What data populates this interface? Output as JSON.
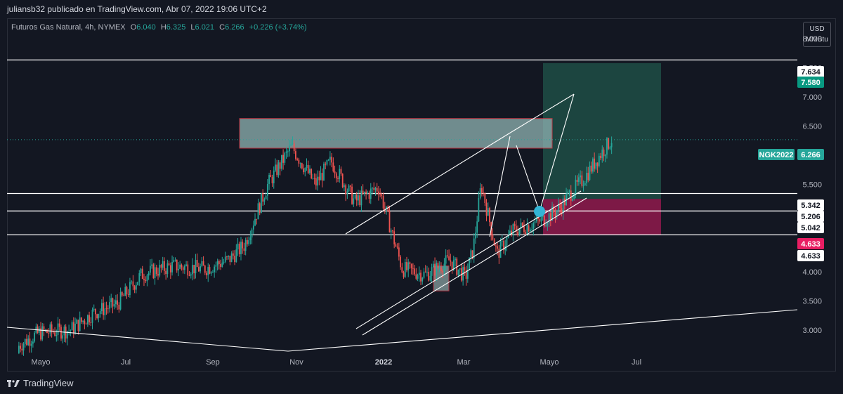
{
  "publish_line": "juliansb32 publicado en TradingView.com, Abr 07, 2022 19:06 UTC+2",
  "legend": {
    "symbol": "Futuros Gas Natural, 4h, NYMEX",
    "o_key": "O",
    "o_val": "6.040",
    "h_key": "H",
    "h_val": "6.325",
    "l_key": "L",
    "l_val": "6.021",
    "c_key": "C",
    "c_val": "6.266",
    "change": "+0.226 (+3.74%)"
  },
  "unit": {
    "currency": "USD",
    "measure": "MMBtu"
  },
  "footer_brand": "TradingView",
  "colors": {
    "background": "#131722",
    "bull": "#26a69a",
    "bear": "#ef5350",
    "target_zone": "#1e4e45",
    "stop_zone": "#8a1a4a",
    "supply_zone": "#8fb3b3"
  },
  "chart_data": {
    "type": "candlestick",
    "ylim": [
      2.6,
      8.35
    ],
    "yticks": [
      "8.000",
      "7.500",
      "7.000",
      "6.500",
      "6.000",
      "5.500",
      "5.000",
      "4.500",
      "4.000",
      "3.500",
      "3.000"
    ],
    "xticks": [
      "Mayo",
      "Jul",
      "Sep",
      "Nov",
      "2022",
      "Mar",
      "Mayo",
      "Jul"
    ],
    "grid": false,
    "price_path": [
      [
        0,
        2.6
      ],
      [
        0.04,
        2.95
      ],
      [
        0.08,
        3.0
      ],
      [
        0.11,
        3.3
      ],
      [
        0.14,
        3.45
      ],
      [
        0.17,
        3.95
      ],
      [
        0.21,
        4.1
      ],
      [
        0.25,
        4.05
      ],
      [
        0.28,
        4.2
      ],
      [
        0.3,
        4.45
      ],
      [
        0.33,
        5.5
      ],
      [
        0.36,
        6.15
      ],
      [
        0.39,
        5.5
      ],
      [
        0.41,
        5.9
      ],
      [
        0.44,
        5.2
      ],
      [
        0.47,
        5.45
      ],
      [
        0.48,
        5.0
      ],
      [
        0.5,
        4.05
      ],
      [
        0.53,
        3.95
      ],
      [
        0.56,
        4.2
      ],
      [
        0.58,
        3.9
      ],
      [
        0.59,
        4.4
      ],
      [
        0.6,
        5.5
      ],
      [
        0.62,
        4.3
      ],
      [
        0.64,
        4.7
      ],
      [
        0.66,
        4.8
      ],
      [
        0.68,
        4.9
      ],
      [
        0.7,
        5.1
      ],
      [
        0.71,
        5.3
      ],
      [
        0.73,
        5.6
      ],
      [
        0.75,
        6.0
      ],
      [
        0.765,
        6.27
      ]
    ],
    "horizontal_levels": [
      "7.634",
      "5.342",
      "5.042",
      "4.633"
    ],
    "price_labels": [
      {
        "text": "7.634",
        "style": "white"
      },
      {
        "text": "7.580",
        "style": "green"
      },
      {
        "text": "NGK2022",
        "style": "green"
      },
      {
        "text": "6.266",
        "style": "green"
      },
      {
        "text": "5.342",
        "style": "white"
      },
      {
        "text": "5.206",
        "style": "white"
      },
      {
        "text": "5.042",
        "style": "white"
      },
      {
        "text": "4.633",
        "style": "red"
      },
      {
        "text": "4.633",
        "style": "white"
      }
    ],
    "zones": {
      "supply": [
        6.12,
        6.63
      ],
      "target": [
        5.25,
        7.58
      ],
      "stop": [
        4.633,
        5.25
      ],
      "small_box": [
        3.67,
        4.1
      ]
    },
    "last_price": "6.266"
  }
}
